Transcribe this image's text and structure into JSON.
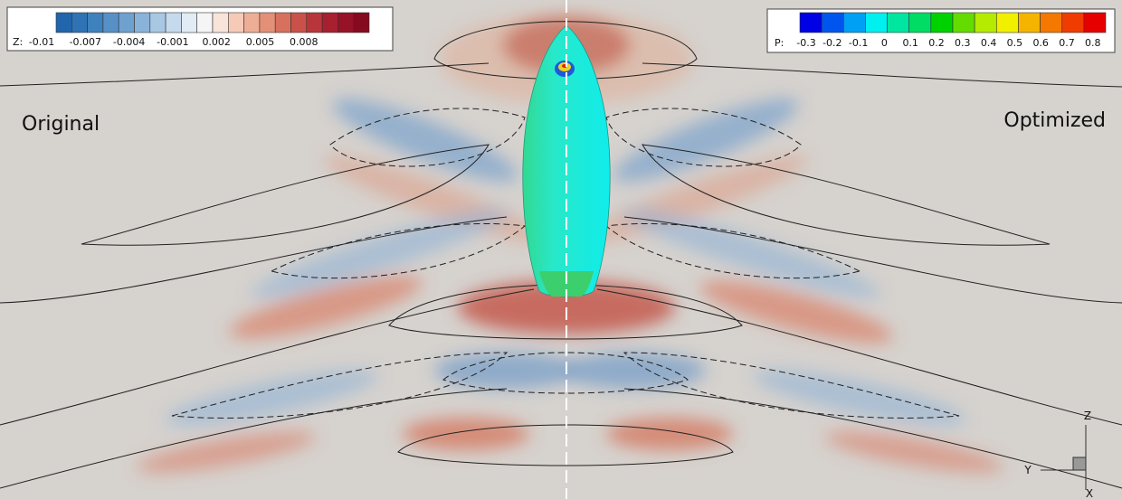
{
  "z_legend": {
    "prefix": "Z:",
    "labels": [
      "-0.01",
      "-0.007",
      "-0.004",
      "-0.001",
      "0.002",
      "0.005",
      "0.008"
    ],
    "colors": [
      "#2166ac",
      "#2f73b5",
      "#3f81bd",
      "#5690c6",
      "#6fa1cf",
      "#8ab3d9",
      "#a7c7e3",
      "#c5daed",
      "#e1ecf5",
      "#f5f5f5",
      "#f9e4da",
      "#f5cbb8",
      "#eeae96",
      "#e48f77",
      "#d8705e",
      "#c9514a",
      "#b8363a",
      "#a6202f",
      "#951227",
      "#850a20"
    ]
  },
  "p_legend": {
    "prefix": "P:",
    "labels": [
      "-0.3",
      "-0.2",
      "-0.1",
      "0",
      "0.1",
      "0.2",
      "0.3",
      "0.4",
      "0.5",
      "0.6",
      "0.7",
      "0.8"
    ],
    "colors": [
      "#0000e6",
      "#0055ee",
      "#00a0f5",
      "#00f0f0",
      "#00e6a0",
      "#00dc64",
      "#00d200",
      "#64dc00",
      "#b4eb00",
      "#f0f000",
      "#f5b400",
      "#f57800",
      "#f03c00",
      "#e60000"
    ]
  },
  "labels": {
    "left": "Original",
    "right": "Optimized"
  },
  "axes": {
    "z": "Z",
    "y": "Y",
    "x": "X"
  }
}
